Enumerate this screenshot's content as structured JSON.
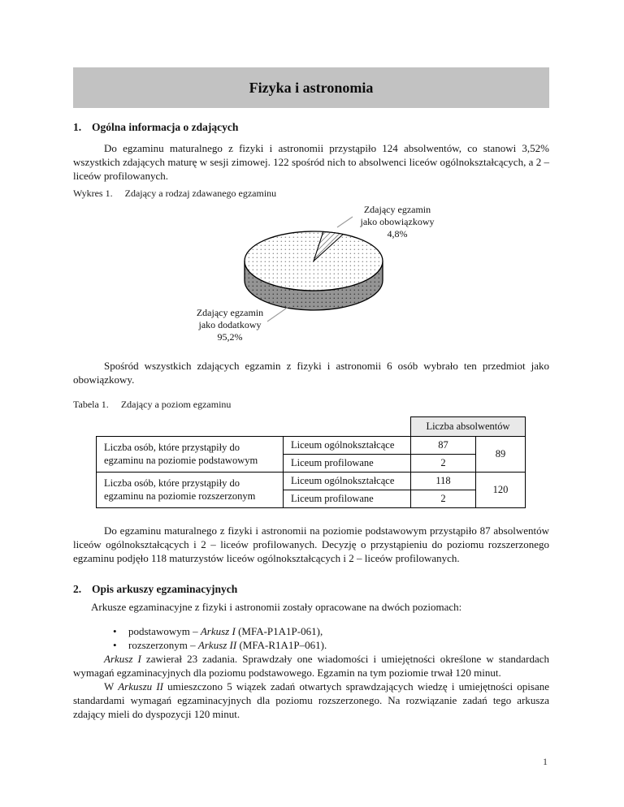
{
  "page": {
    "title": "Fizyka i astronomia",
    "page_number": "1"
  },
  "section1": {
    "heading_num": "1.",
    "heading": "Ogólna informacja o zdających",
    "para1": "Do egzaminu maturalnego z fizyki i astronomii przystąpiło 124 absolwentów, co stanowi 3,52% wszystkich zdających maturę w sesji zimowej. 122 spośród nich to absolwenci liceów ogólnokształcących, a 2 – liceów profilowanych.",
    "chart_caption_label": "Wykres 1.",
    "chart_caption": "Zdający a rodzaj zdawanego egzaminu",
    "para2": "Spośród wszystkich zdających egzamin z fizyki i astronomii 6 osób wybrało ten przedmiot jako obowiązkowy.",
    "table_caption_label": "Tabela 1.",
    "table_caption": "Zdający a poziom egzaminu",
    "para3": "Do egzaminu maturalnego z fizyki i astronomii na poziomie podstawowym przystąpiło 87 absolwentów liceów ogólnokształcących i 2 – liceów profilowanych. Decyzję o przystąpieniu do poziomu rozszerzonego egzaminu podjęło 118 maturzystów liceów ogólnokształcących i 2 – liceów profilowanych."
  },
  "chart_data": {
    "type": "pie",
    "style": "3d-pie",
    "title": "Zdający a rodzaj zdawanego egzaminu",
    "slices": [
      {
        "label": "Zdający egzamin jako dodatkowy",
        "value_pct": 95.2,
        "display": "95,2%",
        "fill": "white-dotted"
      },
      {
        "label": "Zdający egzamin jako obowiązkowy",
        "value_pct": 4.8,
        "display": "4,8%",
        "fill": "diagonal-hatch"
      }
    ],
    "legend_position": "callouts",
    "callouts": {
      "obligatory": {
        "lines": [
          "Zdający egzamin",
          "jako obowiązkowy",
          "4,8%"
        ]
      },
      "additional": {
        "lines": [
          "Zdający egzamin",
          "jako dodatkowy",
          "95,2%"
        ]
      }
    }
  },
  "table": {
    "header": "Liczba absolwentów",
    "rows": [
      {
        "group": "Liczba osób, które przystąpiły do egzaminu na poziomie podstawowym",
        "school": "Liceum ogólnokształcące",
        "count": "87",
        "total": "89"
      },
      {
        "school": "Liceum profilowane",
        "count": "2"
      },
      {
        "group": "Liczba osób, które przystąpiły do egzaminu na poziomie rozszerzonym",
        "school": "Liceum ogólnokształcące",
        "count": "118",
        "total": "120"
      },
      {
        "school": "Liceum profilowane",
        "count": "2"
      }
    ]
  },
  "section2": {
    "heading_num": "2.",
    "heading": "Opis arkuszy egzaminacyjnych",
    "intro": "Arkusze egzaminacyjne z fizyki i astronomii zostały opracowane na dwóch poziomach:",
    "bullet1": [
      {
        "t": "podstawowym – "
      },
      {
        "t": "Arkusz I",
        "i": true
      },
      {
        "t": " (MFA-P1A1P-061),"
      }
    ],
    "bullet2": [
      {
        "t": "rozszerzonym – "
      },
      {
        "t": "Arkusz II",
        "i": true
      },
      {
        "t": " (MFA-R1A1P–061)."
      }
    ],
    "para1": [
      {
        "t": "Arkusz I",
        "i": true
      },
      {
        "t": " zawierał 23 zadania. Sprawdzały one wiadomości i umiejętności określone w standardach wymagań egzaminacyjnych dla poziomu podstawowego. Egzamin na tym poziomie trwał 120 minut."
      }
    ],
    "para2": [
      {
        "t": "W "
      },
      {
        "t": "Arkuszu II",
        "i": true
      },
      {
        "t": " umieszczono 5 wiązek zadań otwartych sprawdzających wiedzę i umiejętności opisane standardami wymagań egzaminacyjnych dla poziomu rozszerzonego. Na rozwiązanie zadań tego arkusza zdający mieli do dyspozycji 120 minut."
      }
    ]
  },
  "colors": {
    "banner_bg": "#c2c2c2",
    "table_header_bg": "#e9e9e9",
    "pie_side_gray": "#949494",
    "text": "#151515"
  }
}
